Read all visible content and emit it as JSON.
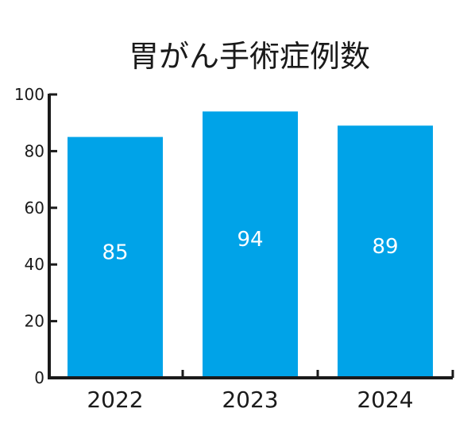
{
  "chart_data": {
    "type": "bar",
    "title": "胃がん手術症例数",
    "xlabel": "",
    "ylabel": "",
    "categories": [
      "2022",
      "2023",
      "2024"
    ],
    "values": [
      85,
      94,
      89
    ],
    "data_labels": [
      "85",
      "94",
      "89"
    ],
    "y_ticks": [
      0,
      20,
      40,
      60,
      80,
      100
    ],
    "y_tick_labels": [
      "0",
      "20",
      "40",
      "60",
      "80",
      "100"
    ],
    "ylim": [
      0,
      100
    ],
    "grid": false,
    "legend": "none",
    "colors": {
      "bar": "#00a3e8",
      "axis": "#1a1a1a",
      "text": "#1a1a1a",
      "data_label": "#ffffff",
      "background": "#ffffff"
    }
  }
}
